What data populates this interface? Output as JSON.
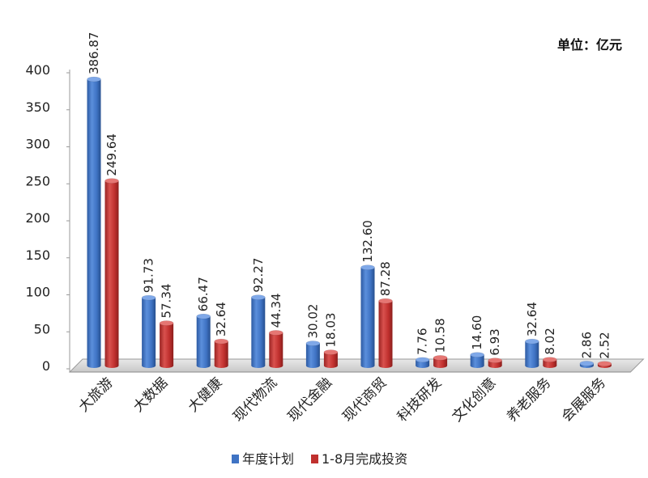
{
  "chart_data": {
    "type": "bar",
    "unit_label": "单位：亿元",
    "categories": [
      "大旅游",
      "大数据",
      "大健康",
      "现代物流",
      "现代金融",
      "现代商贸",
      "科技研发",
      "文化创意",
      "养老服务",
      "会展服务"
    ],
    "series": [
      {
        "name": "年度计划",
        "color": "#3f73c4",
        "values": [
          386.87,
          91.73,
          66.47,
          92.27,
          30.02,
          132.6,
          7.76,
          14.6,
          32.64,
          2.86
        ],
        "labels": [
          "386.87",
          "91.73",
          "66.47",
          "92.27",
          "30.02",
          "132.60",
          "7.76",
          "14.60",
          "32.64",
          "2.86"
        ]
      },
      {
        "name": "1-8月完成投资",
        "color": "#c0302e",
        "values": [
          249.64,
          57.34,
          32.64,
          44.34,
          18.03,
          87.28,
          10.58,
          6.93,
          8.02,
          2.52
        ],
        "labels": [
          "249.64",
          "57.34",
          "32.64",
          "44.34",
          "18.03",
          "87.28",
          "10.58",
          "6.93",
          "8.02",
          "2.52"
        ]
      }
    ],
    "y_ticks": [
      "0",
      "50",
      "100",
      "150",
      "200",
      "250",
      "300",
      "350",
      "400"
    ],
    "ylim": [
      0,
      400
    ],
    "grid": false,
    "legend_position": "bottom"
  }
}
